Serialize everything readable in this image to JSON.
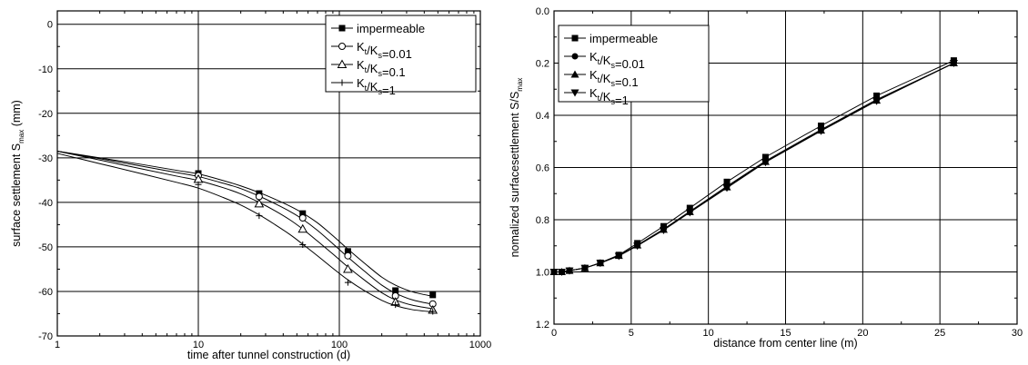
{
  "chart_data": [
    {
      "type": "line",
      "xscale": "log",
      "xlabel": "time after tunnel construction (d)",
      "ylabel_main": "surface settlement S",
      "ylabel_sub": "max",
      "ylabel_unit": " (mm)",
      "xlim": [
        1,
        1000
      ],
      "ylim": [
        -70,
        3
      ],
      "xticks": [
        1,
        10,
        100,
        1000
      ],
      "xtick_labels": [
        "1",
        "10",
        "100",
        "1000"
      ],
      "yticks": [
        0,
        -10,
        -20,
        -30,
        -40,
        -50,
        -60,
        -70
      ],
      "ytick_labels": [
        "0",
        "-10",
        "-20",
        "-30",
        "-40",
        "-50",
        "-60",
        "-70"
      ],
      "grid": true,
      "legend_position": "top-right",
      "series": [
        {
          "name": "impermeable",
          "marker": "square-filled",
          "x": [
            10,
            27,
            55,
            115,
            250,
            460
          ],
          "y": [
            -33.5,
            -38,
            -42.5,
            -51,
            -59.8,
            -60.8
          ],
          "curve_x": [
            1,
            2,
            4,
            7,
            10,
            15,
            20,
            27,
            35,
            45,
            55,
            70,
            90,
            115,
            150,
            200,
            250,
            330,
            460
          ],
          "curve_y": [
            -28.5,
            -30,
            -31.5,
            -32.8,
            -33.6,
            -35.1,
            -36.3,
            -37.8,
            -39.3,
            -40.9,
            -42.4,
            -44.6,
            -47.5,
            -50.5,
            -53.6,
            -56.8,
            -58.6,
            -60.1,
            -61.1
          ]
        },
        {
          "name": "K_t/K_s=0.01",
          "marker": "circle-open",
          "x": [
            10,
            27,
            55,
            115,
            250,
            460
          ],
          "y": [
            -34,
            -38.7,
            -43.5,
            -52,
            -61,
            -62.8
          ],
          "curve_x": [
            1,
            2,
            4,
            7,
            10,
            15,
            20,
            27,
            35,
            45,
            55,
            70,
            90,
            115,
            150,
            200,
            250,
            330,
            460
          ],
          "curve_y": [
            -28.5,
            -30.2,
            -31.9,
            -33.3,
            -34.2,
            -35.7,
            -36.9,
            -38.6,
            -40.3,
            -42.1,
            -43.8,
            -46.3,
            -49.3,
            -52.3,
            -55.4,
            -58.6,
            -60.4,
            -61.9,
            -62.9
          ]
        },
        {
          "name": "K_t/K_s=0.1",
          "marker": "triangle-open",
          "x": [
            10,
            27,
            55,
            115,
            250,
            460
          ],
          "y": [
            -34.8,
            -40.3,
            -46,
            -55,
            -62.4,
            -64.2
          ],
          "curve_x": [
            1,
            2,
            4,
            7,
            10,
            15,
            20,
            27,
            35,
            45,
            55,
            70,
            90,
            115,
            150,
            200,
            250,
            330,
            460
          ],
          "curve_y": [
            -28.5,
            -30.5,
            -32.5,
            -34.1,
            -35.1,
            -36.7,
            -38.1,
            -40,
            -41.9,
            -44,
            -46,
            -48.7,
            -51.6,
            -54.5,
            -57.4,
            -60.3,
            -61.9,
            -63.1,
            -63.9
          ]
        },
        {
          "name": "K_t/K_s=1",
          "marker": "plus",
          "x": [
            10,
            27,
            55,
            115,
            250,
            460
          ],
          "y": [
            -36,
            -43,
            -49.5,
            -58,
            -63,
            -64.5
          ],
          "curve_x": [
            1,
            2,
            4,
            7,
            10,
            15,
            20,
            27,
            35,
            45,
            55,
            70,
            90,
            115,
            150,
            200,
            250,
            330,
            460
          ],
          "curve_y": [
            -29,
            -31.3,
            -33.6,
            -35.5,
            -36.8,
            -38.9,
            -40.6,
            -42.8,
            -45,
            -47.3,
            -49.4,
            -52,
            -54.8,
            -57.4,
            -59.8,
            -62,
            -63.2,
            -64.1,
            -64.6
          ]
        }
      ]
    },
    {
      "type": "line",
      "xlabel": "distance from center line (m)",
      "ylabel_main": "nomalized surfacesettlement S/S",
      "ylabel_sub": "max",
      "xlim": [
        0,
        30
      ],
      "ylim": [
        1.2,
        0
      ],
      "y_inverted": true,
      "xticks": [
        0,
        5,
        10,
        15,
        20,
        25,
        30
      ],
      "xtick_labels": [
        "0",
        "5",
        "10",
        "15",
        "20",
        "25",
        "30"
      ],
      "yticks": [
        0,
        0.2,
        0.4,
        0.6,
        0.8,
        1.0,
        1.2
      ],
      "ytick_labels": [
        "0.0",
        "0.2",
        "0.4",
        "0.6",
        "0.8",
        "1.0",
        "1.2"
      ],
      "grid": true,
      "legend_position": "top-left",
      "series": [
        {
          "name": "impermeable",
          "marker": "square-filled",
          "x": [
            0,
            0.5,
            1,
            2,
            3,
            4.2,
            5.4,
            7.1,
            8.8,
            11.2,
            13.7,
            17.3,
            20.9,
            25.9
          ],
          "y": [
            1,
            1,
            0.995,
            0.985,
            0.965,
            0.935,
            0.89,
            0.825,
            0.755,
            0.655,
            0.56,
            0.44,
            0.325,
            0.19
          ]
        },
        {
          "name": "K_t/K_s=0.01",
          "marker": "circle-filled",
          "x": [
            0,
            0.5,
            1,
            2,
            3,
            4.2,
            5.4,
            7.1,
            8.8,
            11.2,
            13.7,
            17.3,
            20.9,
            25.9
          ],
          "y": [
            1,
            1,
            0.995,
            0.985,
            0.965,
            0.937,
            0.897,
            0.836,
            0.768,
            0.672,
            0.575,
            0.455,
            0.34,
            0.2
          ]
        },
        {
          "name": "K_t/K_s=0.1",
          "marker": "triangle-filled",
          "x": [
            0,
            0.5,
            1,
            2,
            3,
            4.2,
            5.4,
            7.1,
            8.8,
            11.2,
            13.7,
            17.3,
            20.9,
            25.9
          ],
          "y": [
            1,
            1,
            0.995,
            0.985,
            0.966,
            0.938,
            0.898,
            0.838,
            0.77,
            0.675,
            0.578,
            0.458,
            0.343,
            0.2
          ]
        },
        {
          "name": "K_t/K_s=1",
          "marker": "triangle-down-filled",
          "x": [
            0,
            0.5,
            1,
            2,
            3,
            4.2,
            5.4,
            7.1,
            8.8,
            11.2,
            13.7,
            17.3,
            20.9,
            25.9
          ],
          "y": [
            1,
            1,
            0.995,
            0.985,
            0.966,
            0.939,
            0.9,
            0.84,
            0.772,
            0.678,
            0.58,
            0.46,
            0.345,
            0.2
          ]
        }
      ]
    }
  ]
}
